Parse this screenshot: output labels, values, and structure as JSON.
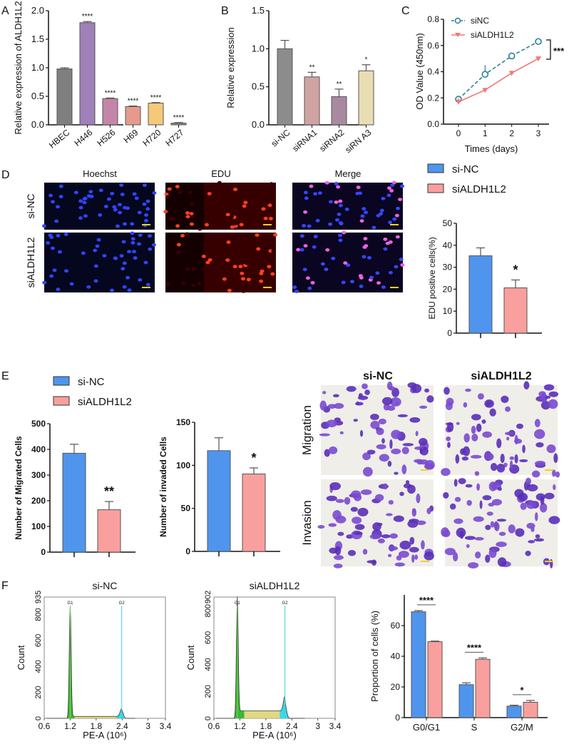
{
  "panel_letters": [
    "A",
    "B",
    "C",
    "D",
    "E",
    "F"
  ],
  "colors": {
    "si_nc": "#4f95ee",
    "si_aldh": "#f9a09e",
    "hoechst": "#2a3cff",
    "edu": "#ff3a1a",
    "crystal_violet": "#6a3ec8",
    "scale_bar": "#f2d21a"
  },
  "chart_data": [
    {
      "id": "A",
      "type": "bar",
      "ylabel": "Relative expression of ALDH1L2",
      "categories": [
        "HBEC",
        "H446",
        "H526",
        "H69",
        "H720",
        "H727"
      ],
      "values": [
        0.98,
        1.79,
        0.46,
        0.32,
        0.38,
        0.03
      ],
      "errors": [
        0.02,
        0.02,
        0.01,
        0.01,
        0.01,
        0.01
      ],
      "significance": [
        "",
        "****",
        "****",
        "****",
        "****",
        "****"
      ],
      "colors": [
        "#7f7f7f",
        "#9f80b8",
        "#c385a8",
        "#e69a8c",
        "#f6c97a",
        "#8a8a8a"
      ],
      "ylim": [
        0,
        2.0
      ],
      "yticks": [
        "0.0",
        "0.5",
        "1.0",
        "1.5",
        "2.0"
      ]
    },
    {
      "id": "B",
      "type": "bar",
      "ylabel": "Relative expression",
      "categories": [
        "si-NC",
        "siRNA1",
        "siRNA2",
        "siRN A3"
      ],
      "values": [
        1.0,
        0.63,
        0.37,
        0.71
      ],
      "errors": [
        0.11,
        0.06,
        0.1,
        0.08
      ],
      "significance": [
        "",
        "**",
        "**",
        "*"
      ],
      "colors": [
        "#8c8c8c",
        "#cfa3a3",
        "#a9899f",
        "#e9ddb3"
      ],
      "ylim": [
        0,
        1.5
      ],
      "yticks": [
        "0.0",
        "0.5",
        "1.0",
        "1.5"
      ]
    },
    {
      "id": "C",
      "type": "line",
      "xlabel": "Times (days)",
      "ylabel": "OD Value (450nm)",
      "x": [
        0,
        1,
        2,
        3
      ],
      "xticks": [
        "0",
        "1",
        "2",
        "3"
      ],
      "ylim": [
        0,
        0.8
      ],
      "yticks": [
        "0.0",
        "0.2",
        "0.4",
        "0.6",
        "0.8"
      ],
      "significance": "***",
      "series": [
        {
          "name": "siNC",
          "values": [
            0.19,
            0.38,
            0.52,
            0.63
          ],
          "errors": [
            0.01,
            0.07,
            0.01,
            0.02
          ],
          "color": "#2b7f9a",
          "style": "dashed",
          "marker": "circle"
        },
        {
          "name": "siALDH1L2",
          "values": [
            0.17,
            0.26,
            0.39,
            0.5
          ],
          "errors": [
            0.03,
            0.01,
            0.01,
            0.01
          ],
          "color": "#f07878",
          "style": "solid",
          "marker": "triangle-down"
        }
      ]
    },
    {
      "id": "D",
      "type": "bar",
      "ylabel": "EDU positive cells(%)",
      "legend": [
        "si-NC",
        "siALDH1L2"
      ],
      "values": [
        35.2,
        20.6
      ],
      "errors": [
        3.6,
        3.6
      ],
      "significance": [
        "",
        "*"
      ],
      "ylim": [
        0,
        50
      ],
      "yticks": [
        "0",
        "10",
        "20",
        "30",
        "40",
        "50"
      ]
    },
    {
      "id": "E1",
      "type": "bar",
      "ylabel": "Number of Migrated Cells",
      "values": [
        385,
        165
      ],
      "errors": [
        35,
        32
      ],
      "significance": [
        "",
        "**"
      ],
      "ylim": [
        0,
        500
      ],
      "yticks": [
        "0",
        "100",
        "200",
        "300",
        "400",
        "500"
      ]
    },
    {
      "id": "E2",
      "type": "bar",
      "ylabel": "Number of invaded Cells",
      "values": [
        117,
        90
      ],
      "errors": [
        15,
        7
      ],
      "significance": [
        "",
        "*"
      ],
      "ylim": [
        0,
        150
      ],
      "yticks": [
        "0",
        "50",
        "100",
        "150"
      ]
    },
    {
      "id": "F1",
      "type": "area",
      "title": "si-NC",
      "xlabel": "PE-A (10⁶)",
      "ylabel": "Count",
      "xlim": [
        0.6,
        3.4
      ],
      "xticks": [
        "0.6",
        "1.2",
        "1.8",
        "2.4",
        "3",
        "3.4"
      ],
      "ylim": [
        0,
        935
      ],
      "yticks": [
        "0",
        "200",
        "400",
        "600",
        "800",
        "935"
      ],
      "gates": [
        {
          "label": "G1",
          "x": 1.2
        },
        {
          "label": "G2",
          "x": 2.39
        }
      ],
      "g1_peak": 850,
      "g2_peak": 60
    },
    {
      "id": "F2",
      "type": "area",
      "title": "siALDH1L2",
      "xlabel": "PE-A (10⁶)",
      "ylabel": "Count",
      "xlim": [
        0.6,
        3.4
      ],
      "xticks": [
        "0.6",
        "1.2",
        "1.8",
        "2.4",
        "3",
        "3.4"
      ],
      "ylim": [
        0,
        902
      ],
      "yticks": [
        "0",
        "200",
        "400",
        "600",
        "800",
        "902"
      ],
      "gates": [
        {
          "label": "G1",
          "x": 1.14
        },
        {
          "label": "G2",
          "x": 2.24
        }
      ],
      "g1_peak": 850,
      "g2_peak": 110
    },
    {
      "id": "F3",
      "type": "bar",
      "ylabel": "Proportion of cells (%)",
      "categories": [
        "G0/G1",
        "S",
        "G2/M"
      ],
      "series": [
        {
          "name": "si-NC",
          "values": [
            69,
            21.5,
            7.5
          ],
          "errors": [
            0.8,
            1.2,
            0.6
          ]
        },
        {
          "name": "siALDH1L2",
          "values": [
            49.5,
            38,
            10
          ],
          "errors": [
            0.4,
            0.9,
            1.2
          ]
        }
      ],
      "significance": [
        "****",
        "****",
        "*"
      ],
      "ylim": [
        0,
        80
      ],
      "yticks": [
        "0",
        "20",
        "40",
        "60"
      ]
    }
  ],
  "panel_d": {
    "columns": [
      "Hoechst",
      "EDU",
      "Merge"
    ],
    "rows": [
      "si-NC",
      "siALDH1L2"
    ]
  },
  "panel_e": {
    "legend": [
      "si-NC",
      "siALDH1L2"
    ],
    "columns": [
      "si-NC",
      "siALDH1L2"
    ],
    "rows": [
      "Migration",
      "Invasion"
    ]
  }
}
